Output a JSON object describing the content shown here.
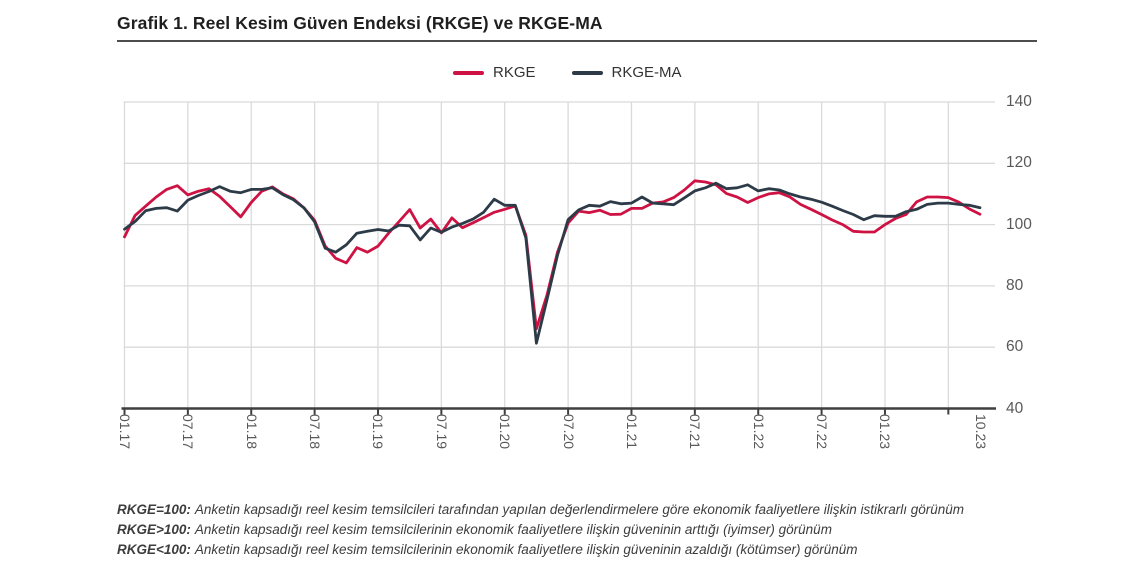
{
  "title": "Grafik 1. Reel Kesim Güven Endeksi (RKGE) ve RKGE-MA",
  "legend": [
    {
      "label": "RKGE",
      "color": "#ce1243"
    },
    {
      "label": "RKGE-MA",
      "color": "#2d3b48"
    }
  ],
  "colors": {
    "grid": "#dadada",
    "axis": "#3f3f3f",
    "tick_label": "#595959",
    "title_rule": "#4d4d4d"
  },
  "chart_data": {
    "type": "line",
    "title": "Reel Kesim Güven Endeksi (RKGE) ve RKGE-MA",
    "xlabel": "",
    "ylabel": "",
    "ylim": [
      40,
      140
    ],
    "y_ticks": [
      140,
      120,
      100,
      80,
      60,
      40
    ],
    "grid": true,
    "legend_position": "top",
    "y_axis_side": "right",
    "x_tick_labels": [
      "01.17",
      "07.17",
      "01.18",
      "07.18",
      "01.19",
      "07.19",
      "01.20",
      "07.20",
      "01.21",
      "07.21",
      "01.22",
      "07.22",
      "01.23",
      "10.23"
    ],
    "categories": [
      "01.17",
      "02.17",
      "03.17",
      "04.17",
      "05.17",
      "06.17",
      "07.17",
      "08.17",
      "09.17",
      "10.17",
      "11.17",
      "12.17",
      "01.18",
      "02.18",
      "03.18",
      "04.18",
      "05.18",
      "06.18",
      "07.18",
      "08.18",
      "09.18",
      "10.18",
      "11.18",
      "12.18",
      "01.19",
      "02.19",
      "03.19",
      "04.19",
      "05.19",
      "06.19",
      "07.19",
      "08.19",
      "09.19",
      "10.19",
      "11.19",
      "12.19",
      "01.20",
      "02.20",
      "03.20",
      "04.20",
      "05.20",
      "06.20",
      "07.20",
      "08.20",
      "09.20",
      "10.20",
      "11.20",
      "12.20",
      "01.21",
      "02.21",
      "03.21",
      "04.21",
      "05.21",
      "06.21",
      "07.21",
      "08.21",
      "09.21",
      "10.21",
      "11.21",
      "12.21",
      "01.22",
      "02.22",
      "03.22",
      "04.22",
      "05.22",
      "06.22",
      "07.22",
      "08.22",
      "09.22",
      "10.22",
      "11.22",
      "12.22",
      "01.23",
      "02.23",
      "03.23",
      "04.23",
      "05.23",
      "06.23",
      "07.23",
      "08.23",
      "09.23",
      "10.23"
    ],
    "series": [
      {
        "name": "RKGE",
        "color": "#ce1243",
        "values": [
          96.0,
          103.0,
          106.0,
          109.0,
          111.5,
          112.7,
          109.7,
          110.9,
          111.7,
          109.2,
          105.9,
          102.5,
          107.2,
          110.9,
          112.3,
          110.0,
          108.4,
          105.4,
          101.4,
          93.0,
          89.0,
          87.5,
          92.5,
          91.0,
          93.0,
          97.2,
          101.0,
          104.9,
          98.9,
          101.8,
          97.3,
          102.2,
          99.0,
          100.6,
          102.3,
          104.0,
          105.0,
          106.1,
          96.5,
          66.0,
          77.0,
          91.0,
          100.5,
          104.4,
          103.9,
          104.7,
          103.3,
          103.4,
          105.3,
          105.3,
          107.0,
          107.4,
          108.8,
          111.3,
          114.3,
          113.9,
          113.0,
          110.1,
          109.0,
          107.2,
          108.8,
          110.0,
          110.4,
          109.0,
          106.6,
          105.0,
          103.3,
          101.5,
          100.0,
          97.8,
          97.6,
          97.6,
          100.0,
          102.0,
          103.3,
          107.4,
          109.0,
          109.0,
          108.8,
          107.3,
          105.1,
          103.4
        ]
      },
      {
        "name": "RKGE-MA",
        "color": "#2d3b48",
        "values": [
          98.5,
          101.0,
          104.5,
          105.3,
          105.5,
          104.4,
          108.0,
          109.5,
          110.8,
          112.4,
          110.9,
          110.4,
          111.5,
          111.5,
          112.0,
          109.8,
          108.1,
          105.4,
          100.9,
          92.3,
          91.0,
          93.4,
          97.2,
          97.8,
          98.4,
          97.9,
          99.8,
          99.6,
          95.0,
          98.9,
          97.5,
          99.2,
          100.4,
          101.8,
          104.0,
          108.3,
          106.3,
          106.3,
          95.6,
          61.3,
          75.5,
          90.0,
          101.6,
          104.8,
          106.3,
          106.0,
          107.5,
          106.8,
          107.0,
          109.0,
          107.0,
          106.8,
          106.5,
          108.7,
          111.0,
          112.0,
          113.5,
          111.7,
          112.0,
          113.0,
          111.0,
          111.7,
          111.3,
          110.0,
          109.0,
          108.3,
          107.3,
          106.0,
          104.6,
          103.3,
          101.6,
          102.9,
          102.7,
          102.7,
          104.2,
          105.0,
          106.6,
          107.0,
          107.0,
          106.6,
          106.3,
          105.5
        ]
      }
    ]
  },
  "footnotes": [
    {
      "lead": "RKGE=100:",
      "text": "Anketin kapsadığı reel kesim temsilcileri tarafından yapılan değerlendirmelere göre ekonomik faaliyetlere ilişkin istikrarlı görünüm"
    },
    {
      "lead": "RKGE>100:",
      "text": "Anketin kapsadığı reel kesim temsilcilerinin ekonomik faaliyetlere ilişkin güveninin arttığı (iyimser) görünüm"
    },
    {
      "lead": "RKGE<100:",
      "text": "Anketin kapsadığı reel kesim temsilcilerinin ekonomik faaliyetlere ilişkin güveninin azaldığı (kötümser) görünüm"
    }
  ]
}
